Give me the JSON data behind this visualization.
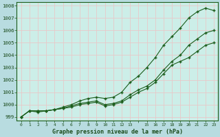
{
  "title": "Graphe pression niveau de la mer (hPa)",
  "bg_color": "#b8dce0",
  "plot_bg_color": "#cceee8",
  "grid_color": "#e8c8c8",
  "line_color": "#1a5c1a",
  "xlim": [
    -0.5,
    23.5
  ],
  "ylim": [
    998.7,
    1008.3
  ],
  "yticks": [
    999,
    1000,
    1001,
    1002,
    1003,
    1004,
    1005,
    1006,
    1007,
    1008
  ],
  "xtick_labels": [
    "0",
    "1",
    "2",
    "3",
    "4",
    "5",
    "6",
    "7",
    "8",
    "9",
    "10",
    "11",
    "12",
    "13",
    "",
    "15",
    "16",
    "17",
    "18",
    "19",
    "20",
    "21",
    "22",
    "23"
  ],
  "series_top": [
    999.0,
    999.5,
    999.5,
    999.5,
    999.6,
    999.8,
    1000.0,
    1000.3,
    1000.5,
    1000.6,
    1000.5,
    1000.6,
    1001.0,
    1001.8,
    1002.3,
    1003.0,
    1003.8,
    1004.8,
    1005.5,
    1006.2,
    1007.0,
    1007.5,
    1007.8,
    1007.6
  ],
  "series_mid": [
    999.0,
    999.5,
    999.5,
    999.5,
    999.6,
    999.7,
    999.9,
    1000.1,
    1000.2,
    1000.3,
    1000.0,
    1000.1,
    1000.3,
    1000.8,
    1001.2,
    1001.5,
    1002.0,
    1002.8,
    1003.5,
    1004.0,
    1004.8,
    1005.3,
    1005.8,
    1006.0
  ],
  "series_bot": [
    999.0,
    999.5,
    999.4,
    999.5,
    999.6,
    999.7,
    999.8,
    1000.0,
    1000.1,
    1000.2,
    999.9,
    1000.0,
    1000.2,
    1000.6,
    1001.0,
    1001.3,
    1001.8,
    1002.5,
    1003.2,
    1003.5,
    1003.8,
    1004.3,
    1004.8,
    1005.0
  ]
}
